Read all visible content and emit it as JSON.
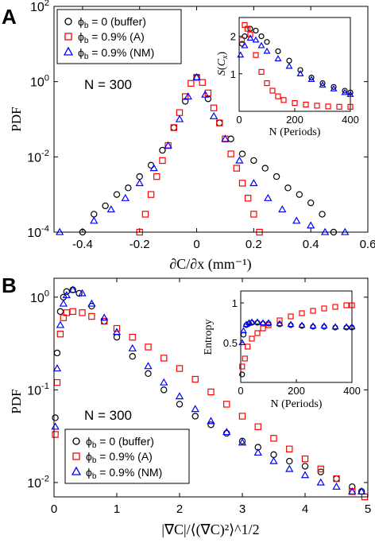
{
  "chart_data": [
    {
      "panel_label": "A",
      "type": "scatter",
      "xlabel": "∂C/∂x (mm⁻¹)",
      "ylabel": "PDF",
      "xlim": [
        -0.5,
        0.6
      ],
      "ylim": [
        0.0001,
        100
      ],
      "yscale": "log",
      "xticks": [
        -0.4,
        -0.2,
        0,
        0.2,
        0.4,
        0.6
      ],
      "xtick_labels": [
        "-0.4",
        "-0.2",
        "0",
        "0.2",
        "0.4",
        "0.6"
      ],
      "yticks": [
        0.0001,
        0.01,
        1,
        100
      ],
      "ytick_labels": [
        [
          "10",
          "-4"
        ],
        [
          "10",
          "-2"
        ],
        [
          "10",
          "0"
        ],
        [
          "10",
          "2"
        ]
      ],
      "annotation": "N = 300",
      "legend_placement": "top-left",
      "series": [
        {
          "name": "ϕb = 0 (buffer)",
          "label_main": "ϕ",
          "label_sub": "b",
          "label_rest": " = 0 (buffer)",
          "marker": "circle",
          "color": "#000000",
          "x": [
            -0.4,
            -0.36,
            -0.32,
            -0.28,
            -0.24,
            -0.2,
            -0.16,
            -0.12,
            -0.08,
            -0.04,
            0,
            0.04,
            0.08,
            0.12,
            0.16,
            0.2,
            0.24,
            0.28,
            0.32,
            0.36,
            0.4,
            0.44,
            0.48
          ],
          "y": [
            0.0001,
            0.0003,
            0.0005,
            0.001,
            0.0015,
            0.003,
            0.006,
            0.015,
            0.06,
            0.3,
            1.3,
            0.35,
            0.08,
            0.03,
            0.012,
            0.008,
            0.005,
            0.003,
            0.0015,
            0.001,
            0.0006,
            0.0003,
            0.0001
          ]
        },
        {
          "name": "ϕb = 0.9% (A)",
          "label_main": "ϕ",
          "label_sub": "b",
          "label_rest": " = 0.9% (A)",
          "marker": "square",
          "color": "#ff0000",
          "x": [
            -0.2,
            -0.18,
            -0.16,
            -0.14,
            -0.12,
            -0.1,
            -0.08,
            -0.06,
            -0.04,
            -0.02,
            0,
            0.02,
            0.04,
            0.06,
            0.08,
            0.1,
            0.12,
            0.14,
            0.16,
            0.18,
            0.2,
            0.22
          ],
          "y": [
            0.0001,
            0.0003,
            0.001,
            0.003,
            0.008,
            0.02,
            0.06,
            0.15,
            0.4,
            0.9,
            1.3,
            0.95,
            0.5,
            0.2,
            0.08,
            0.03,
            0.012,
            0.005,
            0.002,
            0.0008,
            0.0003,
            0.0001
          ]
        },
        {
          "name": "ϕb = 0.9% (NM)",
          "label_main": "ϕ",
          "label_sub": "b",
          "label_rest": " = 0.9% (NM)",
          "marker": "triangle",
          "color": "#0000ff",
          "x": [
            -0.48,
            -0.36,
            -0.3,
            -0.25,
            -0.2,
            -0.15,
            -0.1,
            -0.06,
            -0.03,
            0,
            0.03,
            0.06,
            0.1,
            0.15,
            0.2,
            0.25,
            0.3,
            0.35,
            0.4,
            0.45,
            0.52
          ],
          "y": [
            0.0001,
            0.0002,
            0.0004,
            0.0008,
            0.002,
            0.005,
            0.02,
            0.1,
            0.4,
            1.3,
            0.45,
            0.12,
            0.03,
            0.008,
            0.002,
            0.0008,
            0.0004,
            0.0002,
            0.00015,
            0.0001,
            0.0001
          ]
        }
      ],
      "inset": {
        "type": "scatter",
        "xlabel": "N (Periods)",
        "ylabel": "S(Cx)",
        "xlim": [
          0,
          400
        ],
        "ylim": [
          0,
          2.5
        ],
        "xticks": [
          0,
          200,
          400
        ],
        "xtick_labels": [
          "0",
          "200",
          "400"
        ],
        "yticks": [
          1,
          2
        ],
        "ytick_labels": [
          "1",
          "2"
        ],
        "series": [
          {
            "marker": "circle",
            "color": "#000000",
            "x": [
              10,
              20,
              40,
              60,
              80,
              100,
              140,
              180,
              220,
              260,
              300,
              340,
              380,
              400
            ],
            "y": [
              1.8,
              2.0,
              2.2,
              2.15,
              2.0,
              1.85,
              1.6,
              1.35,
              1.1,
              0.9,
              0.75,
              0.65,
              0.55,
              0.5
            ]
          },
          {
            "marker": "square",
            "color": "#ff0000",
            "x": [
              10,
              20,
              30,
              40,
              60,
              80,
              100,
              120,
              140,
              160,
              200,
              240,
              280,
              320,
              360,
              400
            ],
            "y": [
              1.9,
              2.3,
              2.2,
              2.05,
              1.5,
              1.05,
              0.75,
              0.55,
              0.4,
              0.3,
              0.22,
              0.18,
              0.15,
              0.13,
              0.12,
              0.12
            ]
          },
          {
            "marker": "triangle",
            "color": "#0000ff",
            "x": [
              5,
              20,
              40,
              60,
              80,
              100,
              140,
              180,
              220,
              260,
              300,
              340,
              380,
              400
            ],
            "y": [
              1.5,
              1.75,
              1.95,
              1.9,
              1.75,
              1.6,
              1.4,
              1.2,
              1.0,
              0.85,
              0.7,
              0.6,
              0.5,
              0.45
            ]
          }
        ]
      }
    },
    {
      "panel_label": "B",
      "type": "scatter",
      "xlabel": "|∇C|/⟨(∇C)²⟩^1/2",
      "ylabel": "PDF",
      "xlim": [
        0,
        5
      ],
      "ylim": [
        0.007,
        1.6
      ],
      "yscale": "log",
      "xticks": [
        0,
        1,
        2,
        3,
        4,
        5
      ],
      "xtick_labels": [
        "0",
        "1",
        "2",
        "3",
        "4",
        "5"
      ],
      "yticks": [
        0.01,
        0.1,
        1
      ],
      "ytick_labels": [
        [
          "10",
          "-2"
        ],
        [
          "10",
          "-1"
        ],
        [
          "10",
          "0"
        ]
      ],
      "annotation": "N = 300",
      "legend_placement": "bottom-left",
      "series": [
        {
          "name": "ϕb = 0 (buffer)",
          "label_main": "ϕ",
          "label_sub": "b",
          "label_rest": " = 0 (buffer)",
          "marker": "circle",
          "color": "#000000",
          "x": [
            0.02,
            0.05,
            0.1,
            0.15,
            0.2,
            0.3,
            0.4,
            0.6,
            0.8,
            1.0,
            1.25,
            1.5,
            1.75,
            2.0,
            2.25,
            2.5,
            2.75,
            3.0,
            3.25,
            3.5,
            3.75,
            4.0,
            4.25,
            4.5,
            4.75,
            4.9
          ],
          "y": [
            0.05,
            0.25,
            0.7,
            1.0,
            1.15,
            1.2,
            1.1,
            0.8,
            0.55,
            0.37,
            0.23,
            0.15,
            0.1,
            0.07,
            0.052,
            0.042,
            0.034,
            0.028,
            0.024,
            0.02,
            0.017,
            0.015,
            0.013,
            0.011,
            0.009,
            0.008
          ]
        },
        {
          "name": "ϕb = 0.9% (A)",
          "label_main": "ϕ",
          "label_sub": "b",
          "label_rest": " = 0.9% (A)",
          "marker": "square",
          "color": "#ff0000",
          "x": [
            0.02,
            0.05,
            0.1,
            0.15,
            0.2,
            0.3,
            0.45,
            0.6,
            0.8,
            1.0,
            1.25,
            1.5,
            1.75,
            2.0,
            2.25,
            2.5,
            2.75,
            3.0,
            3.25,
            3.5,
            3.75,
            4.0,
            4.25,
            4.5,
            4.75,
            4.95
          ],
          "y": [
            0.033,
            0.12,
            0.4,
            0.6,
            0.68,
            0.7,
            0.68,
            0.62,
            0.55,
            0.46,
            0.37,
            0.29,
            0.22,
            0.17,
            0.13,
            0.095,
            0.07,
            0.052,
            0.04,
            0.03,
            0.023,
            0.018,
            0.014,
            0.011,
            0.008,
            0.007
          ]
        },
        {
          "name": "ϕb = 0.9% (NM)",
          "label_main": "ϕ",
          "label_sub": "b",
          "label_rest": " = 0.9% (NM)",
          "marker": "triangle",
          "color": "#0000ff",
          "x": [
            0.02,
            0.05,
            0.1,
            0.15,
            0.2,
            0.3,
            0.45,
            0.6,
            0.8,
            1.0,
            1.25,
            1.5,
            1.75,
            2.0,
            2.25,
            2.5,
            2.75,
            3.0,
            3.25,
            3.5,
            3.75,
            4.0,
            4.25,
            4.5,
            4.75,
            4.9
          ],
          "y": [
            0.04,
            0.17,
            0.5,
            0.85,
            1.05,
            1.2,
            1.1,
            0.85,
            0.6,
            0.42,
            0.28,
            0.18,
            0.12,
            0.085,
            0.062,
            0.046,
            0.035,
            0.027,
            0.021,
            0.017,
            0.014,
            0.012,
            0.01,
            0.009,
            0.008,
            0.008
          ]
        }
      ],
      "inset": {
        "type": "scatter",
        "xlabel": "N (Periods)",
        "ylabel": "Entropy",
        "xlim": [
          0,
          400
        ],
        "ylim": [
          0,
          1.15
        ],
        "xticks": [
          0,
          200,
          400
        ],
        "xtick_labels": [
          "0",
          "200",
          "400"
        ],
        "yticks": [
          0.5,
          1
        ],
        "ytick_labels": [
          "0.5",
          "1"
        ],
        "series": [
          {
            "marker": "circle",
            "color": "#000000",
            "x": [
              5,
              10,
              20,
              30,
              40,
              60,
              80,
              100,
              140,
              180,
              220,
              260,
              300,
              340,
              380,
              400
            ],
            "y": [
              0.1,
              0.6,
              0.72,
              0.74,
              0.75,
              0.75,
              0.74,
              0.74,
              0.73,
              0.72,
              0.71,
              0.7,
              0.7,
              0.69,
              0.69,
              0.69
            ]
          },
          {
            "marker": "square",
            "color": "#ff0000",
            "x": [
              5,
              15,
              25,
              40,
              60,
              80,
              100,
              140,
              180,
              220,
              260,
              300,
              340,
              380,
              400
            ],
            "y": [
              0.2,
              0.3,
              0.45,
              0.55,
              0.62,
              0.68,
              0.72,
              0.78,
              0.83,
              0.87,
              0.9,
              0.93,
              0.95,
              0.97,
              0.97
            ]
          },
          {
            "marker": "triangle",
            "color": "#0000ff",
            "x": [
              5,
              10,
              20,
              30,
              40,
              60,
              80,
              100,
              140,
              180,
              220,
              260,
              300,
              340,
              380,
              400
            ],
            "y": [
              0.5,
              0.65,
              0.73,
              0.75,
              0.76,
              0.76,
              0.75,
              0.75,
              0.74,
              0.73,
              0.72,
              0.71,
              0.71,
              0.7,
              0.7,
              0.7
            ]
          }
        ]
      }
    }
  ]
}
